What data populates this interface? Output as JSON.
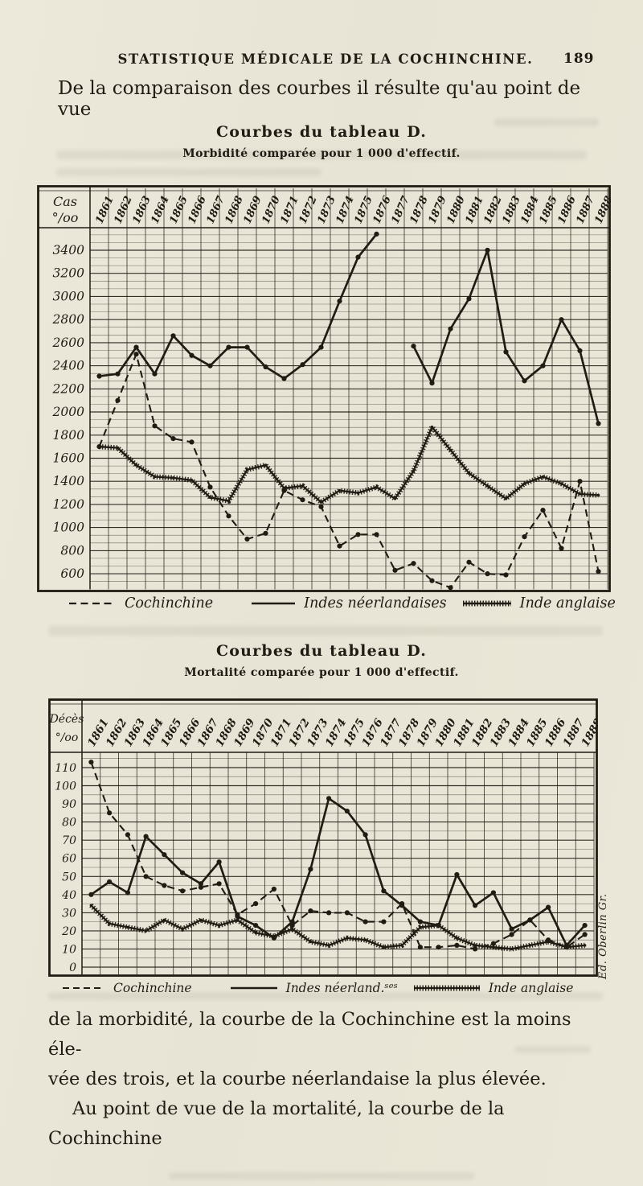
{
  "page": {
    "header": "STATISTIQUE MÉDICALE DE LA COCHINCHINE.",
    "page_number": "189",
    "intro_line": "De la comparaison des courbes il résulte qu'au point de vue",
    "footer_lines": [
      "de la morbidité, la courbe de la Cochinchine est la moins éle-",
      "vée des trois, et la courbe néerlandaise la plus élevée.",
      "Au point de vue de la mortalité, la courbe de la Cochinchine"
    ],
    "signature": "Ed. Oberlin Gr."
  },
  "chart_data": [
    {
      "type": "line",
      "title": "Courbes du tableau D.",
      "subtitle": "Morbidité comparée pour 1 000 d'effectif.",
      "ylabel": "Cas °/oo",
      "xlabel": "",
      "grid": true,
      "legend_position": "bottom",
      "ylim": [
        600,
        3400
      ],
      "yticks": [
        3400,
        3200,
        3000,
        2800,
        2600,
        2400,
        2200,
        2000,
        1800,
        1600,
        1400,
        1200,
        1000,
        800,
        600
      ],
      "x": [
        "1861",
        "1862",
        "1863",
        "1864",
        "1865",
        "1866",
        "1867",
        "1868",
        "1869",
        "1870",
        "1871",
        "1872",
        "1873",
        "1874",
        "1875",
        "1876",
        "1877",
        "1878",
        "1879",
        "1880",
        "1881",
        "1882",
        "1883",
        "1884",
        "1885",
        "1886",
        "1887",
        "1888"
      ],
      "series": [
        {
          "name": "Inde anglaise",
          "style": "hatched",
          "values": [
            1700,
            1690,
            1540,
            1440,
            1430,
            1410,
            1260,
            1230,
            1500,
            1540,
            1340,
            1360,
            1220,
            1320,
            1300,
            1350,
            1250,
            1490,
            1870,
            1670,
            1470,
            1360,
            1250,
            1380,
            1440,
            1380,
            1290,
            1280
          ]
        },
        {
          "name": "Cochinchine",
          "style": "dashed",
          "values": [
            1700,
            2100,
            2500,
            1880,
            1770,
            1740,
            1350,
            1100,
            900,
            950,
            1320,
            1240,
            1180,
            840,
            940,
            940,
            630,
            690,
            540,
            480,
            700,
            600,
            590,
            920,
            1150,
            820,
            1400,
            620
          ]
        },
        {
          "name": "Indes néerlandaises",
          "style": "solid",
          "values": [
            2310,
            2330,
            2560,
            2330,
            2660,
            2490,
            2400,
            2560,
            2560,
            2390,
            2290,
            2410,
            2560,
            2960,
            3340,
            3540,
            null,
            2570,
            2250,
            2720,
            2980,
            3400,
            2520,
            2270,
            2400,
            2800,
            2530,
            1900
          ]
        }
      ],
      "legend": [
        "Cochinchine",
        "Indes néerlandaises",
        "Inde anglaise"
      ]
    },
    {
      "type": "line",
      "title": "Courbes du tableau D.",
      "subtitle": "Mortalité comparée pour 1 000 d'effectif.",
      "ylabel": "Décès °/oo",
      "xlabel": "",
      "grid": true,
      "legend_position": "bottom",
      "ylim": [
        0,
        110
      ],
      "yticks": [
        110,
        100,
        90,
        80,
        70,
        60,
        50,
        40,
        30,
        20,
        10,
        0
      ],
      "x": [
        "1861",
        "1862",
        "1863",
        "1864",
        "1865",
        "1866",
        "1867",
        "1868",
        "1869",
        "1870",
        "1871",
        "1872",
        "1873",
        "1874",
        "1875",
        "1876",
        "1877",
        "1878",
        "1879",
        "1880",
        "1881",
        "1882",
        "1883",
        "1884",
        "1885",
        "1886",
        "1887",
        "1888"
      ],
      "series": [
        {
          "name": "Inde anglaise",
          "style": "hatched",
          "values": [
            34,
            24,
            22,
            20,
            26,
            21,
            26,
            23,
            26,
            19,
            17,
            21,
            14,
            12,
            16,
            15,
            11,
            12,
            22,
            23,
            16,
            12,
            11,
            10,
            12,
            14,
            11,
            12
          ]
        },
        {
          "name": "Cochinchine",
          "style": "dashed",
          "values": [
            113,
            85,
            73,
            50,
            45,
            42,
            44,
            46,
            29,
            35,
            43,
            23,
            31,
            30,
            30,
            25,
            25,
            35,
            11,
            11,
            12,
            10,
            13,
            18,
            26,
            15,
            11,
            18
          ]
        },
        {
          "name": "Indes néerlandaises",
          "style": "solid",
          "values": [
            40,
            47,
            41,
            72,
            62,
            52,
            46,
            58,
            28,
            23,
            16,
            25,
            54,
            93,
            86,
            73,
            42,
            34,
            25,
            23,
            51,
            34,
            41,
            21,
            26,
            33,
            12,
            23
          ]
        }
      ],
      "legend": [
        "Cochinchine",
        "Indes néerland.ˢᵉˢ",
        "Inde anglaise"
      ]
    }
  ]
}
